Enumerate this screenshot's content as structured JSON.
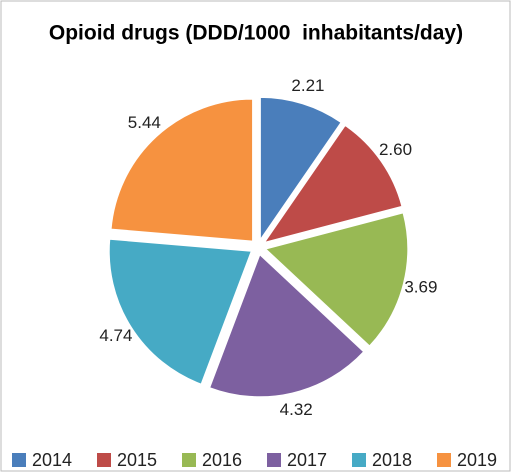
{
  "chart_data": {
    "type": "pie",
    "title": "Opioid drugs (DDD/1000  inhabitants/day)",
    "categories": [
      "2014",
      "2015",
      "2016",
      "2017",
      "2018",
      "2019"
    ],
    "values": [
      2.21,
      2.6,
      3.69,
      4.32,
      4.74,
      5.44
    ],
    "value_labels": [
      "2.21",
      "2.60",
      "3.69",
      "4.32",
      "4.74",
      "5.44"
    ],
    "colors": [
      "#4a7ebb",
      "#be4b48",
      "#98b954",
      "#7d60a0",
      "#46aac5",
      "#f69240"
    ],
    "legend": "bottom"
  }
}
